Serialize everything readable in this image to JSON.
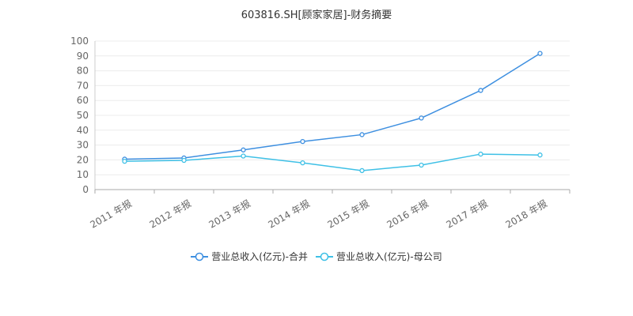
{
  "chart_data": {
    "type": "line",
    "title": "603816.SH[顾家家居]-财务摘要",
    "xlabel": "",
    "ylabel": "",
    "categories": [
      "2011 年报",
      "2012 年报",
      "2013 年报",
      "2014 年报",
      "2015 年报",
      "2016 年报",
      "2017 年报",
      "2018 年报"
    ],
    "y_ticks": [
      "0",
      "10",
      "20",
      "30",
      "40",
      "50",
      "60",
      "70",
      "80",
      "90",
      "100"
    ],
    "ylim": [
      0,
      100
    ],
    "grid": "horizontal",
    "legend_position": "bottom",
    "series": [
      {
        "name": "营业总收入(亿元)-合并",
        "color": "#3d8fe0",
        "values": [
          20.5,
          21.3,
          26.7,
          32.4,
          37.0,
          48.2,
          66.8,
          91.7
        ]
      },
      {
        "name": "营业总收入(亿元)-母公司",
        "color": "#3ec0e6",
        "values": [
          19.1,
          19.7,
          22.6,
          18.0,
          12.8,
          16.5,
          23.9,
          23.3
        ]
      }
    ]
  }
}
